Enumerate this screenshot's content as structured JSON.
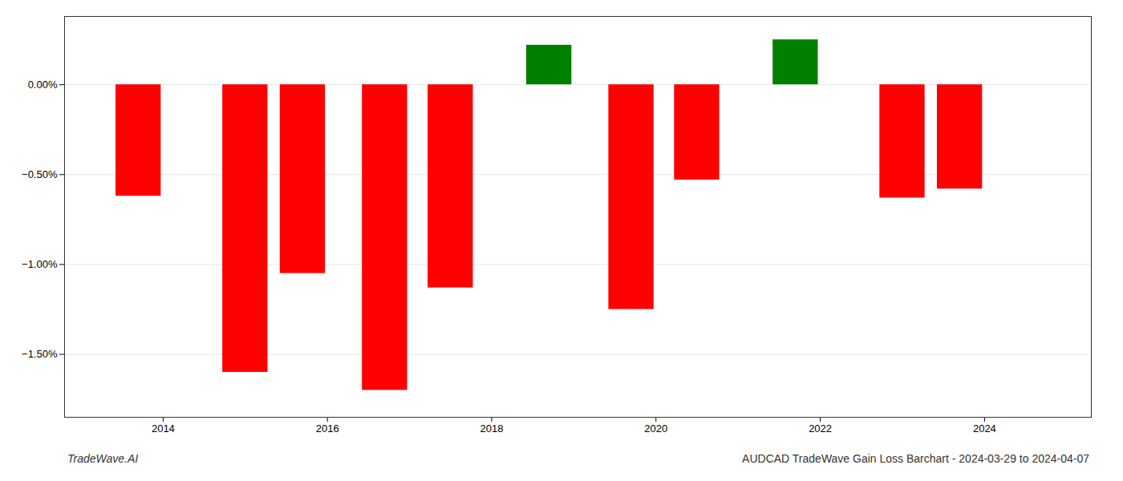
{
  "chart_data": {
    "type": "bar",
    "x": [
      2013.7,
      2015.0,
      2015.7,
      2016.7,
      2017.5,
      2018.7,
      2019.7,
      2020.5,
      2021.7,
      2023.0,
      2023.7
    ],
    "values": [
      -0.0062,
      -0.016,
      -0.0105,
      -0.017,
      -0.0113,
      0.0022,
      -0.0125,
      -0.0053,
      0.0025,
      -0.0063,
      -0.0058
    ],
    "colors": [
      "#ff0000",
      "#ff0000",
      "#ff0000",
      "#ff0000",
      "#ff0000",
      "#008000",
      "#ff0000",
      "#ff0000",
      "#008000",
      "#ff0000",
      "#ff0000"
    ],
    "xlim": [
      2012.8,
      2025.3
    ],
    "xticks": [
      2014,
      2016,
      2018,
      2020,
      2022,
      2024
    ],
    "ylim": [
      -0.0185,
      0.0038
    ],
    "yticks": [
      {
        "value": 0.0,
        "label": "0.00%"
      },
      {
        "value": -0.005,
        "label": "−0.50%"
      },
      {
        "value": -0.01,
        "label": "−1.00%"
      },
      {
        "value": -0.015,
        "label": "−1.50%"
      }
    ],
    "grid": true,
    "annotations": [
      "TradeWave.AI",
      "AUDCAD TradeWave Gain Loss Barchart - 2024-03-29 to 2024-04-07"
    ]
  }
}
